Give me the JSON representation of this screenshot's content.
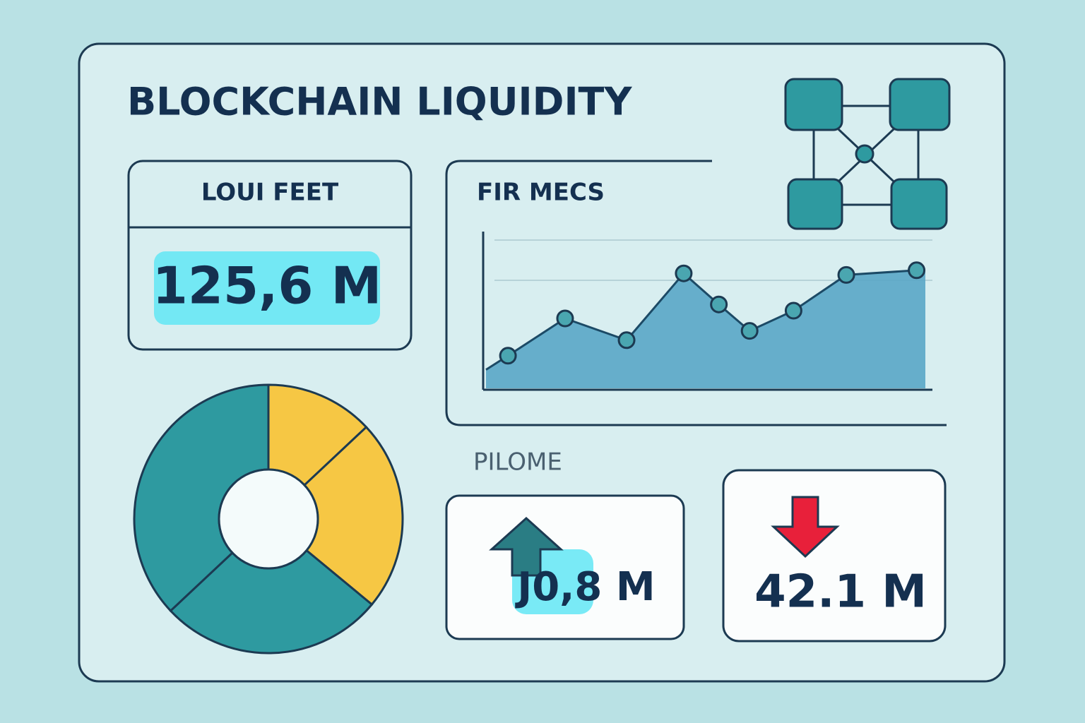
{
  "header": {
    "title": "BLOCKCHAIN LIQUIDITY"
  },
  "liquidity_card": {
    "label": "LOUI FEET",
    "value": "125,6 M"
  },
  "metrics_panel": {
    "title": "FIR MECS",
    "chart_data": {
      "type": "area",
      "x": [
        0,
        5,
        18,
        32,
        45,
        53,
        60,
        70,
        82,
        98
      ],
      "values": [
        12,
        21,
        45,
        31,
        74,
        54,
        37,
        50,
        73,
        76
      ],
      "xlim": [
        0,
        100
      ],
      "ylim": [
        0,
        100
      ],
      "color": "#5aa6c6"
    }
  },
  "share_chart": {
    "chart_data": {
      "type": "donut",
      "values": [
        13,
        23,
        27,
        37
      ],
      "colors": [
        "#f6c744",
        "#f6c744",
        "#2e9aa0",
        "#2e9aa0"
      ]
    }
  },
  "flow_section": {
    "label": "PILOME",
    "cards": [
      {
        "value": "J0,8 M"
      },
      {
        "value": "42.1 M"
      }
    ]
  }
}
